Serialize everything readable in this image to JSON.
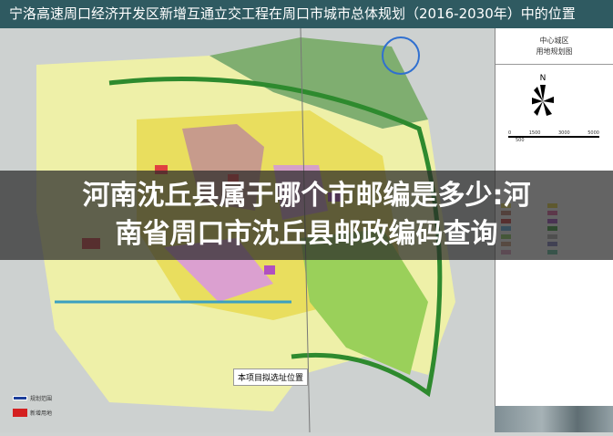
{
  "title": "宁洛高速周口经济开发区新增互通立交工程在周口市城市总体规划（2016-2030年）中的位置",
  "headline": {
    "line1": "河南沈丘县属于哪个市邮编是多少:河",
    "line2": "南省周口市沈丘县邮政编码查询"
  },
  "side_panel": {
    "heading1": "中心城区",
    "heading2": "用地规划图",
    "north": "N",
    "scale": [
      "0",
      "500",
      "1500",
      "3000",
      "5000"
    ],
    "legend_colors": [
      "#f0e060",
      "#e8d840",
      "#c08070",
      "#e060a0",
      "#d04040",
      "#a050c0",
      "#60b0e0",
      "#40a040",
      "#90d060",
      "#b0b0b0",
      "#d0a080",
      "#8080c0",
      "#e0a0c0",
      "#60c0a0"
    ]
  },
  "callout": "本项目拟选址位置",
  "map_legend": [
    {
      "label": "规划范围",
      "color": "#1d3f9a"
    },
    {
      "label": "新增用地",
      "color": "#d42020"
    }
  ]
}
